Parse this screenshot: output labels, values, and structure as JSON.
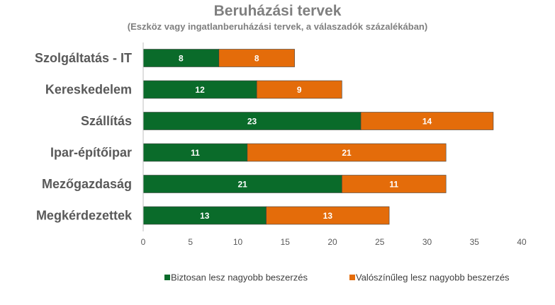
{
  "chart_data": {
    "type": "bar",
    "orientation": "horizontal",
    "stacked": true,
    "title": "Beruházási tervek",
    "subtitle": "(Eszköz vagy ingatlanberuházási tervek, a válaszadók százalékában)",
    "categories": [
      "Szolgáltatás - IT",
      "Kereskedelem",
      "Szállítás",
      "Ipar-építőipar",
      "Mezőgazdaság",
      "Megkérdezettek"
    ],
    "series": [
      {
        "name": "Biztosan lesz nagyobb beszerzés",
        "color": "#0a6b2a",
        "values": [
          8,
          12,
          23,
          11,
          21,
          13
        ]
      },
      {
        "name": "Valószínűleg lesz nagyobb beszerzés",
        "color": "#e46c0a",
        "values": [
          8,
          9,
          14,
          21,
          11,
          13
        ]
      }
    ],
    "xlim": [
      0,
      40
    ],
    "xticks": [
      0,
      5,
      10,
      15,
      20,
      25,
      30,
      35,
      40
    ],
    "grid": false,
    "legend_position": "bottom"
  }
}
